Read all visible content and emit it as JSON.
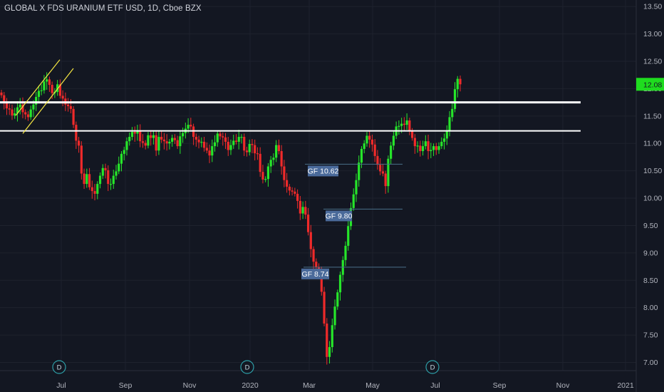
{
  "header": {
    "title": "GLOBAL X FDS URANIUM ETF USD, 1D, Cboe BZX"
  },
  "colors": {
    "background": "#131722",
    "grid": "#1e222d",
    "up": "#26e62a",
    "down": "#ef2a2a",
    "text": "#b2b5be",
    "annotation_box": "#4a6a9a",
    "price_badge": "#1fdc1f",
    "channel": "#f5e642",
    "level": "#ffffff"
  },
  "chart_data": {
    "type": "candlestick",
    "ylim": [
      6.85,
      13.62
    ],
    "yticks": [
      "7.00",
      "7.50",
      "8.00",
      "8.50",
      "9.00",
      "9.50",
      "10.00",
      "10.50",
      "11.00",
      "11.50",
      "12.00",
      "12.50",
      "13.00",
      "13.50"
    ],
    "x_tick_labels": [
      "Jul",
      "Sep",
      "Nov",
      "2020",
      "Mar",
      "May",
      "Jul",
      "Sep",
      "Nov",
      "2021"
    ],
    "last_price": "12.08",
    "dividend_markers": [
      "D",
      "D",
      "D"
    ],
    "horizontal_levels": [
      11.75,
      11.23
    ],
    "annotations": [
      {
        "label": "GF 10.62",
        "value": 10.62
      },
      {
        "label": "GF 9.80",
        "value": 9.8
      },
      {
        "label": "GF 8.74",
        "value": 8.74
      }
    ],
    "series": [
      {
        "values": [
          11.88,
          11.76,
          11.64,
          11.62,
          11.51,
          11.55,
          11.66,
          11.71,
          11.57,
          11.53,
          11.48,
          11.62,
          11.71,
          11.85,
          11.96,
          11.97,
          12.13,
          12.17,
          12.07,
          11.92,
          11.94,
          12.08,
          11.87,
          11.82,
          11.71,
          11.68,
          11.63,
          11.34,
          11.05,
          10.96,
          10.45,
          10.26,
          10.44,
          10.2,
          10.13,
          10.08,
          10.26,
          10.41,
          10.55,
          10.51,
          10.26,
          10.26,
          10.41,
          10.49,
          10.63,
          10.81,
          10.88,
          11.04,
          11.12,
          11.21,
          11.18,
          11.23,
          11.04,
          11.01,
          10.96,
          11.15,
          11.1,
          11.15,
          10.87,
          11.12,
          11.07,
          11.04,
          11.0,
          11.03,
          11.1,
          11.06,
          10.95,
          11.13,
          11.19,
          11.27,
          11.34,
          11.31,
          11.12,
          11.07,
          11.02,
          11.03,
          10.92,
          10.87,
          10.78,
          10.95,
          11.02,
          11.18,
          11.13,
          11.11,
          11.03,
          10.88,
          10.97,
          11.05,
          11.03,
          11.12,
          11.12,
          10.87,
          10.84,
          10.99,
          10.97,
          10.82,
          10.81,
          10.48,
          10.34,
          10.35,
          10.58,
          10.7,
          10.74,
          10.97,
          10.86,
          10.58,
          10.33,
          10.21,
          10.14,
          10.12,
          10.08,
          9.95,
          9.72,
          9.84,
          9.7,
          9.38,
          9.07,
          8.84,
          8.74,
          8.67,
          8.29,
          7.71,
          7.1,
          7.28,
          7.68,
          8.02,
          8.28,
          8.6,
          8.87,
          9.13,
          9.49,
          9.82,
          10.07,
          10.33,
          10.65,
          10.9,
          11.0,
          11.14,
          11.07,
          10.98,
          10.77,
          10.61,
          10.49,
          10.45,
          10.22,
          10.72,
          10.96,
          11.14,
          11.31,
          11.32,
          11.36,
          11.34,
          11.42,
          11.22,
          11.1,
          10.95,
          10.96,
          10.86,
          10.95,
          11.04,
          10.86,
          10.88,
          10.95,
          10.88,
          10.95,
          11.03,
          11.09,
          11.23,
          11.48,
          11.63,
          11.99,
          12.18,
          12.08
        ]
      }
    ]
  }
}
